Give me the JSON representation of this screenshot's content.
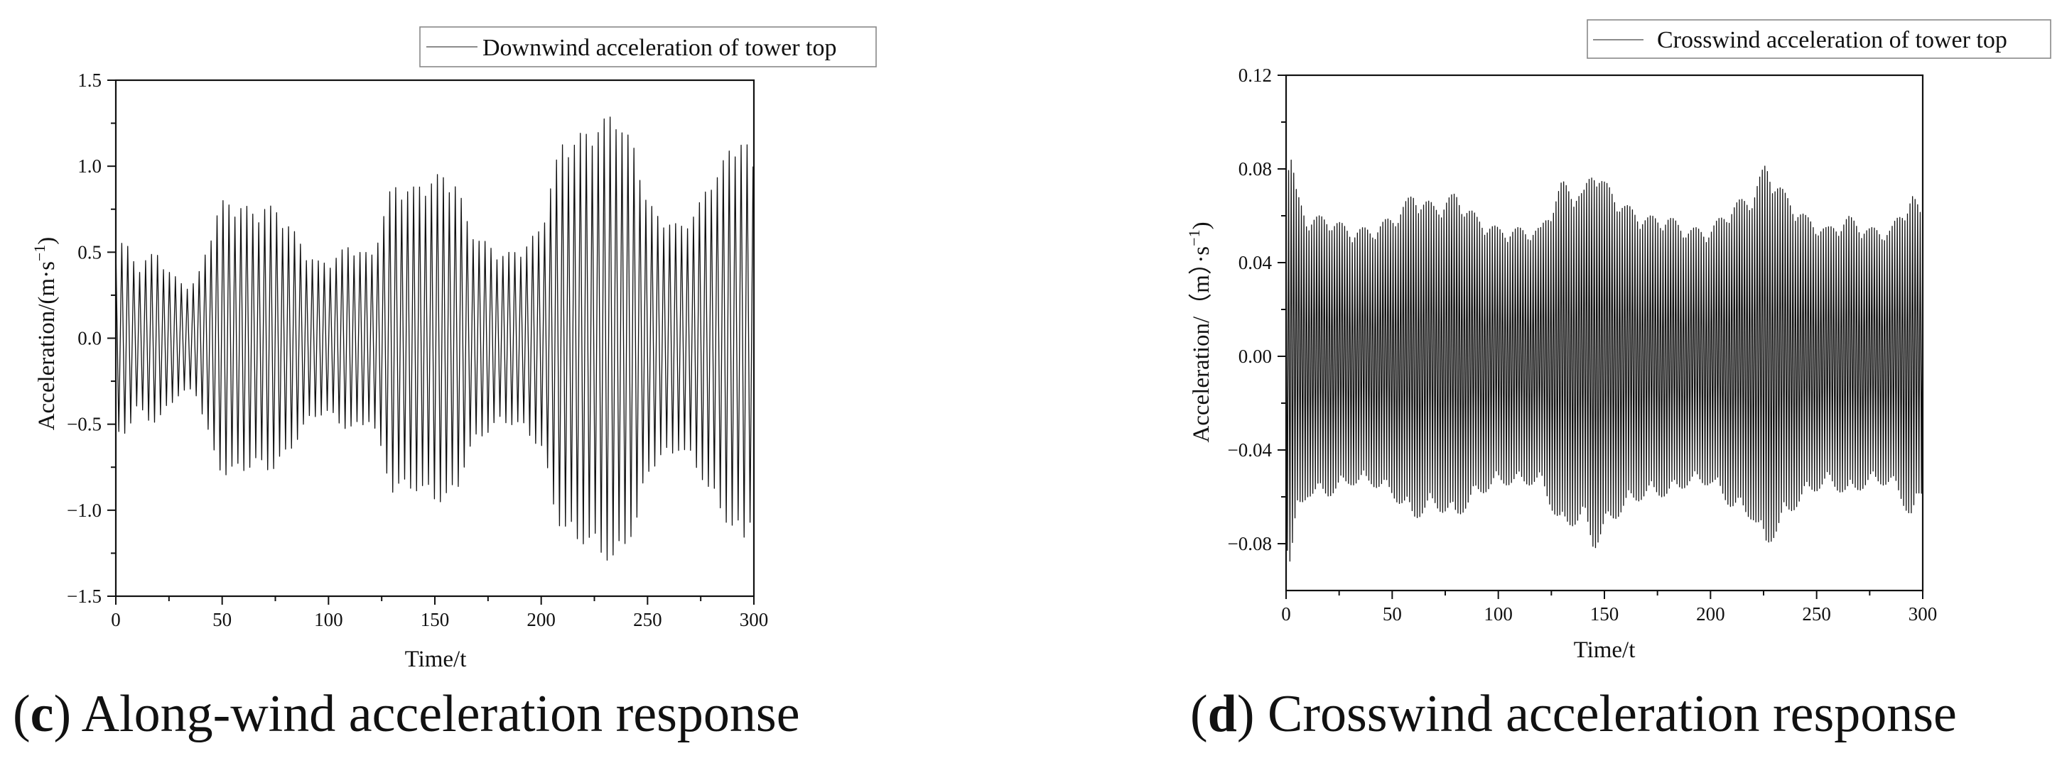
{
  "chart_data": [
    {
      "type": "line",
      "panel_letter": "c",
      "caption": "Along-wind acceleration response",
      "legend": "Downwind acceleration of tower top",
      "xlabel": "Time/t",
      "ylabel": "Acceleration/(m·s",
      "ylabel_sup": "−1",
      "ylabel_close": ")",
      "xlim": [
        0,
        300
      ],
      "ylim": [
        -1.5,
        1.5
      ],
      "xticks": [
        0,
        50,
        100,
        150,
        200,
        250,
        300
      ],
      "yticks": [
        -1.5,
        -1.0,
        -0.5,
        0.0,
        0.5,
        1.0,
        1.5
      ],
      "ytick_decimals": 1,
      "series": [
        {
          "name": "Downwind acceleration of tower top",
          "cycle_period": 2.8,
          "envelope": {
            "t": [
              0,
              5,
              10,
              15,
              20,
              25,
              30,
              35,
              38,
              42,
              46,
              50,
              55,
              60,
              65,
              70,
              75,
              80,
              85,
              90,
              95,
              100,
              105,
              110,
              115,
              120,
              125,
              130,
              135,
              140,
              145,
              150,
              155,
              160,
              165,
              170,
              175,
              180,
              185,
              190,
              195,
              200,
              205,
              210,
              215,
              220,
              225,
              230,
              235,
              240,
              245,
              250,
              255,
              260,
              265,
              270,
              275,
              280,
              285,
              290,
              295,
              300
            ],
            "amplitude": [
              0.6,
              0.55,
              0.42,
              0.48,
              0.5,
              0.4,
              0.33,
              0.32,
              0.34,
              0.5,
              0.7,
              0.8,
              0.8,
              0.78,
              0.74,
              0.78,
              0.76,
              0.7,
              0.6,
              0.5,
              0.45,
              0.45,
              0.5,
              0.55,
              0.52,
              0.48,
              0.7,
              0.9,
              0.9,
              0.88,
              0.92,
              0.95,
              0.96,
              0.92,
              0.7,
              0.6,
              0.55,
              0.5,
              0.5,
              0.52,
              0.58,
              0.65,
              0.95,
              1.15,
              1.18,
              1.2,
              1.25,
              1.28,
              1.35,
              1.2,
              1.1,
              0.8,
              0.72,
              0.7,
              0.65,
              0.72,
              0.8,
              0.95,
              1.02,
              1.15,
              1.2,
              1.0
            ]
          }
        }
      ]
    },
    {
      "type": "line",
      "panel_letter": "d",
      "caption": "Crosswind acceleration response",
      "legend": "Crosswind acceleration of tower top",
      "xlabel": "Time/t",
      "ylabel": "Acceleration/（m）·s",
      "ylabel_sup": "−1",
      "ylabel_close": ")",
      "xlim": [
        0,
        300
      ],
      "ylim": [
        -0.1,
        0.12
      ],
      "xticks": [
        0,
        50,
        100,
        150,
        200,
        250,
        300
      ],
      "yticks": [
        -0.08,
        -0.04,
        0.0,
        0.04,
        0.08,
        0.12
      ],
      "ytick_decimals": 2,
      "series": [
        {
          "name": "Crosswind acceleration of tower top",
          "cycle_period": 1.2,
          "envelope": {
            "t": [
              0,
              2,
              5,
              10,
              20,
              30,
              40,
              50,
              60,
              70,
              80,
              90,
              100,
              110,
              120,
              130,
              140,
              145,
              150,
              160,
              170,
              180,
              190,
              200,
              210,
              220,
              226,
              235,
              245,
              255,
              265,
              275,
              285,
              295,
              300
            ],
            "amplitude": [
              0.08,
              0.09,
              0.07,
              0.06,
              0.06,
              0.055,
              0.055,
              0.06,
              0.07,
              0.065,
              0.07,
              0.06,
              0.055,
              0.055,
              0.055,
              0.075,
              0.07,
              0.083,
              0.075,
              0.065,
              0.06,
              0.06,
              0.055,
              0.055,
              0.065,
              0.07,
              0.083,
              0.07,
              0.06,
              0.055,
              0.06,
              0.055,
              0.055,
              0.07,
              0.06
            ]
          }
        }
      ]
    }
  ]
}
